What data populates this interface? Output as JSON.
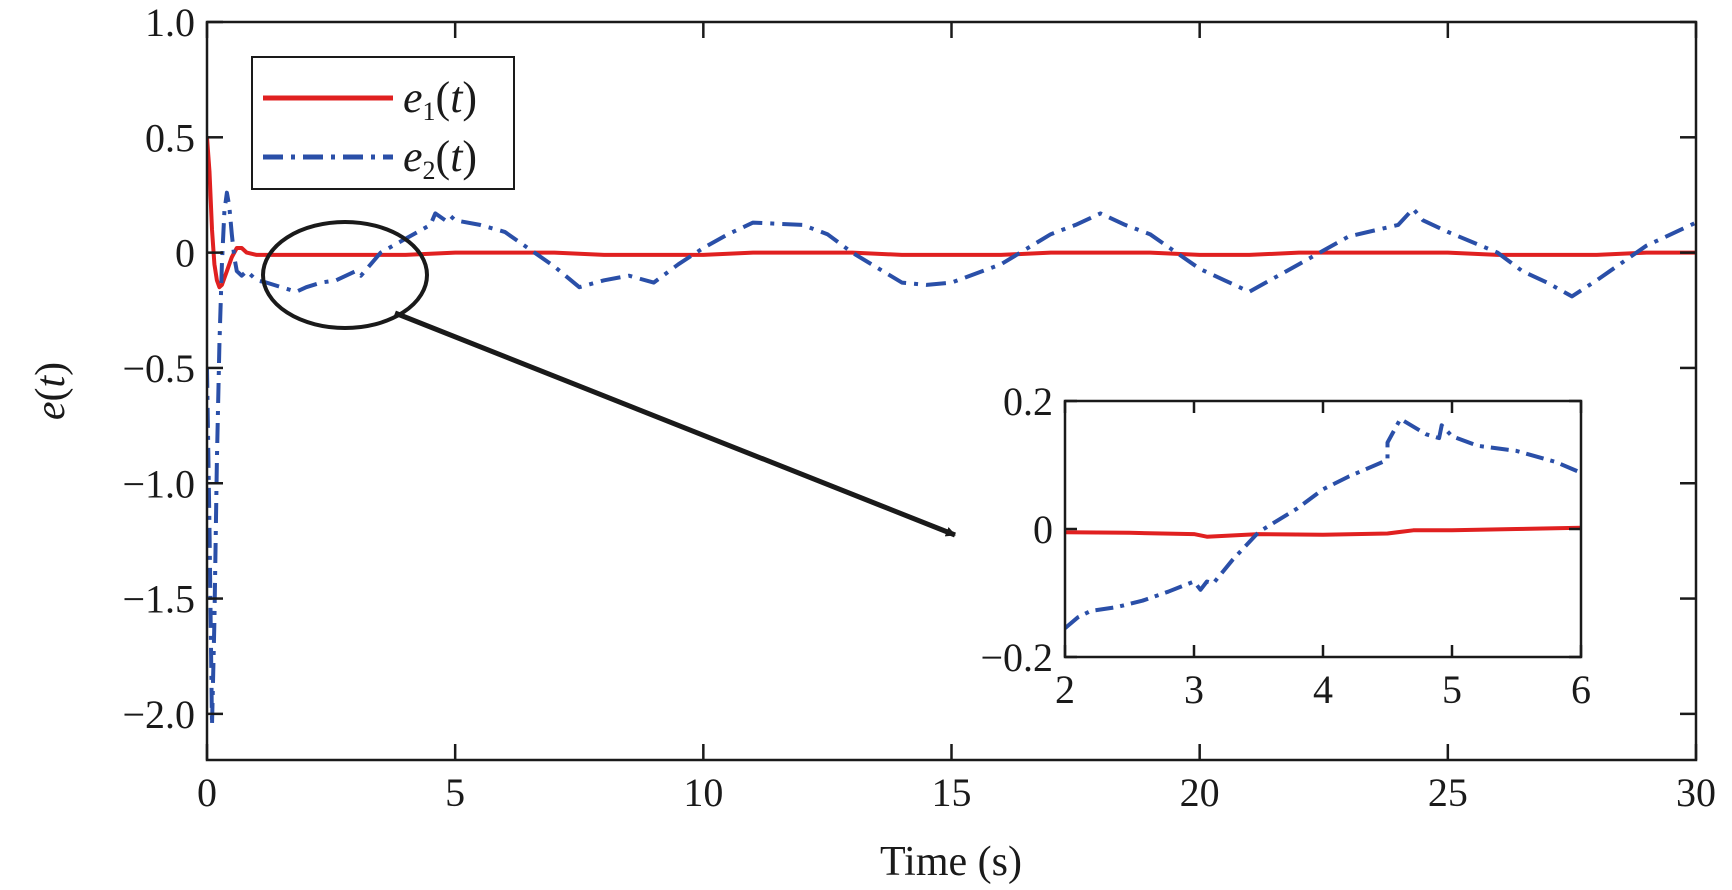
{
  "chart_data": [
    {
      "type": "line",
      "xlabel": "Time (s)",
      "ylabel_main": "e",
      "ylabel_arg": "t",
      "xlim": [
        0,
        30
      ],
      "ylim": [
        -2.2,
        1.0
      ],
      "x_ticks": [
        0,
        5,
        10,
        15,
        20,
        25,
        30
      ],
      "x_tick_labels": [
        "0",
        "5",
        "10",
        "15",
        "20",
        "25",
        "30"
      ],
      "y_ticks": [
        -2.0,
        -1.5,
        -1.0,
        -0.5,
        0,
        0.5,
        1.0
      ],
      "y_tick_labels": [
        "−2.0",
        "−1.5",
        "−1.0",
        "−0.5",
        "0",
        "0.5",
        "1.0"
      ],
      "grid": false,
      "legend_position": "top-left",
      "series": [
        {
          "name_main": "e",
          "name_sub": "1",
          "name_arg": "t",
          "color": "#e02020",
          "style": "solid",
          "x": [
            0,
            0.05,
            0.1,
            0.15,
            0.2,
            0.25,
            0.3,
            0.4,
            0.5,
            0.6,
            0.7,
            0.8,
            1.0,
            1.5,
            2,
            3,
            4,
            5,
            6,
            7,
            8,
            9,
            10,
            11,
            12,
            13,
            14,
            15,
            16,
            17,
            18,
            19,
            20,
            21,
            22,
            23,
            24,
            25,
            26,
            27,
            28,
            29,
            30
          ],
          "y": [
            0.5,
            0.35,
            0.1,
            -0.05,
            -0.12,
            -0.15,
            -0.14,
            -0.08,
            -0.02,
            0.02,
            0.02,
            0.0,
            -0.01,
            -0.01,
            -0.01,
            -0.01,
            -0.01,
            0.0,
            0.0,
            0.0,
            -0.01,
            -0.01,
            -0.01,
            0.0,
            0.0,
            0.0,
            -0.01,
            -0.01,
            -0.01,
            0.0,
            0.0,
            0.0,
            -0.01,
            -0.01,
            0.0,
            0.0,
            0.0,
            0.0,
            -0.01,
            -0.01,
            -0.01,
            0.0,
            0.0
          ]
        },
        {
          "name_main": "e",
          "name_sub": "2",
          "name_arg": "t",
          "color": "#2a4fa8",
          "style": "dashdot",
          "x": [
            0,
            0.05,
            0.1,
            0.15,
            0.2,
            0.25,
            0.3,
            0.35,
            0.4,
            0.45,
            0.5,
            0.55,
            0.6,
            0.7,
            0.8,
            0.9,
            1.0,
            1.2,
            1.5,
            1.8,
            2.0,
            2.3,
            2.6,
            3.0,
            3.1,
            3.3,
            3.5,
            4.0,
            4.5,
            4.6,
            4.8,
            4.9,
            5.0,
            5.5,
            6.0,
            7.0,
            7.5,
            8.0,
            8.5,
            9.0,
            9.5,
            10.0,
            10.5,
            11.0,
            12.0,
            12.5,
            13.0,
            14.0,
            14.5,
            15.0,
            16.0,
            17.0,
            17.5,
            18.0,
            18.5,
            19.0,
            20.0,
            20.5,
            21.0,
            22.0,
            23.0,
            24.0,
            24.3,
            24.5,
            25.0,
            26.0,
            26.5,
            27.0,
            27.5,
            28.0,
            29.0,
            30.0
          ],
          "y": [
            -0.5,
            -1.2,
            -2.05,
            -1.6,
            -0.9,
            -0.4,
            -0.05,
            0.18,
            0.26,
            0.2,
            0.08,
            -0.02,
            -0.08,
            -0.1,
            -0.08,
            -0.1,
            -0.12,
            -0.13,
            -0.15,
            -0.17,
            -0.15,
            -0.13,
            -0.12,
            -0.08,
            -0.1,
            -0.05,
            0.0,
            0.06,
            0.12,
            0.17,
            0.14,
            0.16,
            0.14,
            0.12,
            0.09,
            -0.06,
            -0.15,
            -0.12,
            -0.1,
            -0.13,
            -0.05,
            0.02,
            0.08,
            0.13,
            0.12,
            0.08,
            0.0,
            -0.13,
            -0.14,
            -0.13,
            -0.05,
            0.08,
            0.12,
            0.17,
            0.12,
            0.08,
            -0.07,
            -0.12,
            -0.17,
            -0.05,
            0.07,
            0.12,
            0.19,
            0.14,
            0.09,
            0.0,
            -0.08,
            -0.13,
            -0.19,
            -0.12,
            0.03,
            0.13
          ]
        }
      ]
    },
    {
      "type": "line",
      "role": "inset",
      "xlim": [
        2,
        6
      ],
      "ylim": [
        -0.2,
        0.2
      ],
      "x_ticks": [
        2,
        3,
        4,
        5,
        6
      ],
      "x_tick_labels": [
        "2",
        "3",
        "4",
        "5",
        "6"
      ],
      "y_ticks": [
        -0.2,
        0,
        0.2
      ],
      "y_tick_labels": [
        "−0.2",
        "0",
        "0.2"
      ],
      "series": [
        {
          "color": "#e02020",
          "style": "solid",
          "x": [
            2.0,
            2.5,
            3.0,
            3.1,
            3.5,
            4.0,
            4.5,
            4.7,
            5.0,
            5.5,
            6.0
          ],
          "y": [
            -0.005,
            -0.006,
            -0.008,
            -0.012,
            -0.008,
            -0.009,
            -0.007,
            -0.002,
            -0.002,
            0.0,
            0.002
          ]
        },
        {
          "color": "#2a4fa8",
          "style": "dashdot",
          "x": [
            2.0,
            2.1,
            2.2,
            2.4,
            2.6,
            2.8,
            3.0,
            3.05,
            3.1,
            3.15,
            3.3,
            3.5,
            3.8,
            4.0,
            4.2,
            4.5,
            4.5,
            4.6,
            4.8,
            4.9,
            4.92,
            5.0,
            5.2,
            5.5,
            5.8,
            6.0
          ],
          "y": [
            -0.155,
            -0.138,
            -0.128,
            -0.122,
            -0.112,
            -0.098,
            -0.082,
            -0.095,
            -0.082,
            -0.085,
            -0.048,
            -0.005,
            0.032,
            0.062,
            0.082,
            0.108,
            0.135,
            0.172,
            0.148,
            0.142,
            0.162,
            0.145,
            0.13,
            0.122,
            0.105,
            0.088
          ]
        }
      ]
    }
  ]
}
